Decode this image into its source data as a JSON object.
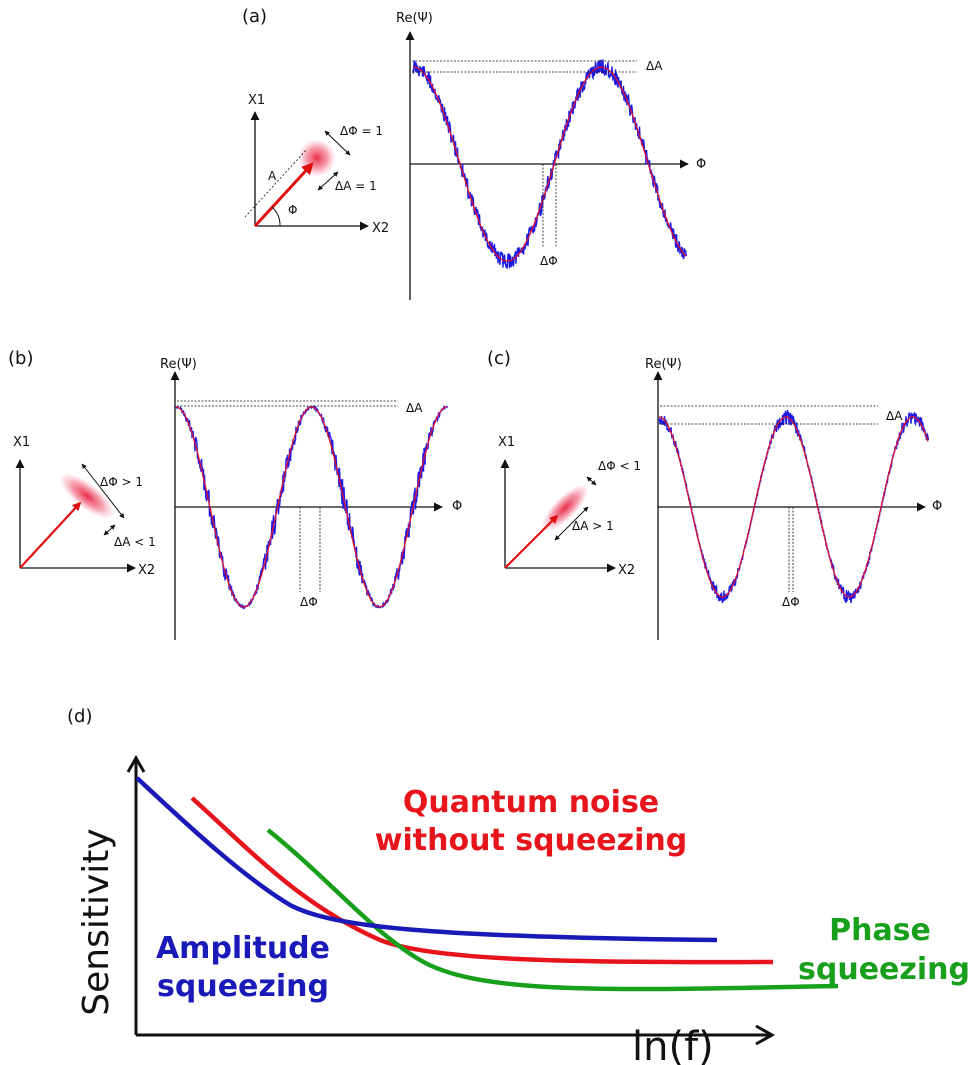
{
  "panels": {
    "a": {
      "label": "(a)",
      "phasor": {
        "x1": "X1",
        "x2": "X2",
        "amp": "A",
        "phase": "Φ",
        "dphi": "ΔΦ = 1",
        "damp": "ΔA = 1"
      },
      "wave": {
        "ylabel": "Re(Ψ)",
        "xlabel": "Φ",
        "dA": "ΔA",
        "dPhi": "ΔΦ"
      }
    },
    "b": {
      "label": "(b)",
      "phasor": {
        "x1": "X1",
        "x2": "X2",
        "dphi": "ΔΦ > 1",
        "damp": "ΔA < 1"
      },
      "wave": {
        "ylabel": "Re(Ψ)",
        "xlabel": "Φ",
        "dA": "ΔA",
        "dPhi": "ΔΦ"
      }
    },
    "c": {
      "label": "(c)",
      "phasor": {
        "x1": "X1",
        "x2": "X2",
        "dphi": "ΔΦ < 1",
        "damp": "ΔA > 1"
      },
      "wave": {
        "ylabel": "Re(Ψ)",
        "xlabel": "Φ",
        "dA": "ΔA",
        "dPhi": "ΔΦ"
      }
    },
    "d": {
      "label": "(d)",
      "ylabel": "Sensitivity",
      "xlabel": "ln(f)",
      "curves": [
        {
          "name": "Quantum noise without squeezing",
          "line1": "Quantum noise",
          "line2": "without squeezing",
          "color": "#e8141c"
        },
        {
          "name": "Amplitude squeezing",
          "line1": "Amplitude",
          "line2": "squeezing",
          "color": "#1a1ab8"
        },
        {
          "name": "Phase squeezing",
          "line1": "Phase",
          "line2": "squeezing",
          "color": "#18a01c"
        }
      ]
    }
  },
  "colors": {
    "noise_band": "#1a1ae6",
    "mean_line": "#e01030",
    "arrow": "#e01010",
    "blob": "#f04060"
  }
}
